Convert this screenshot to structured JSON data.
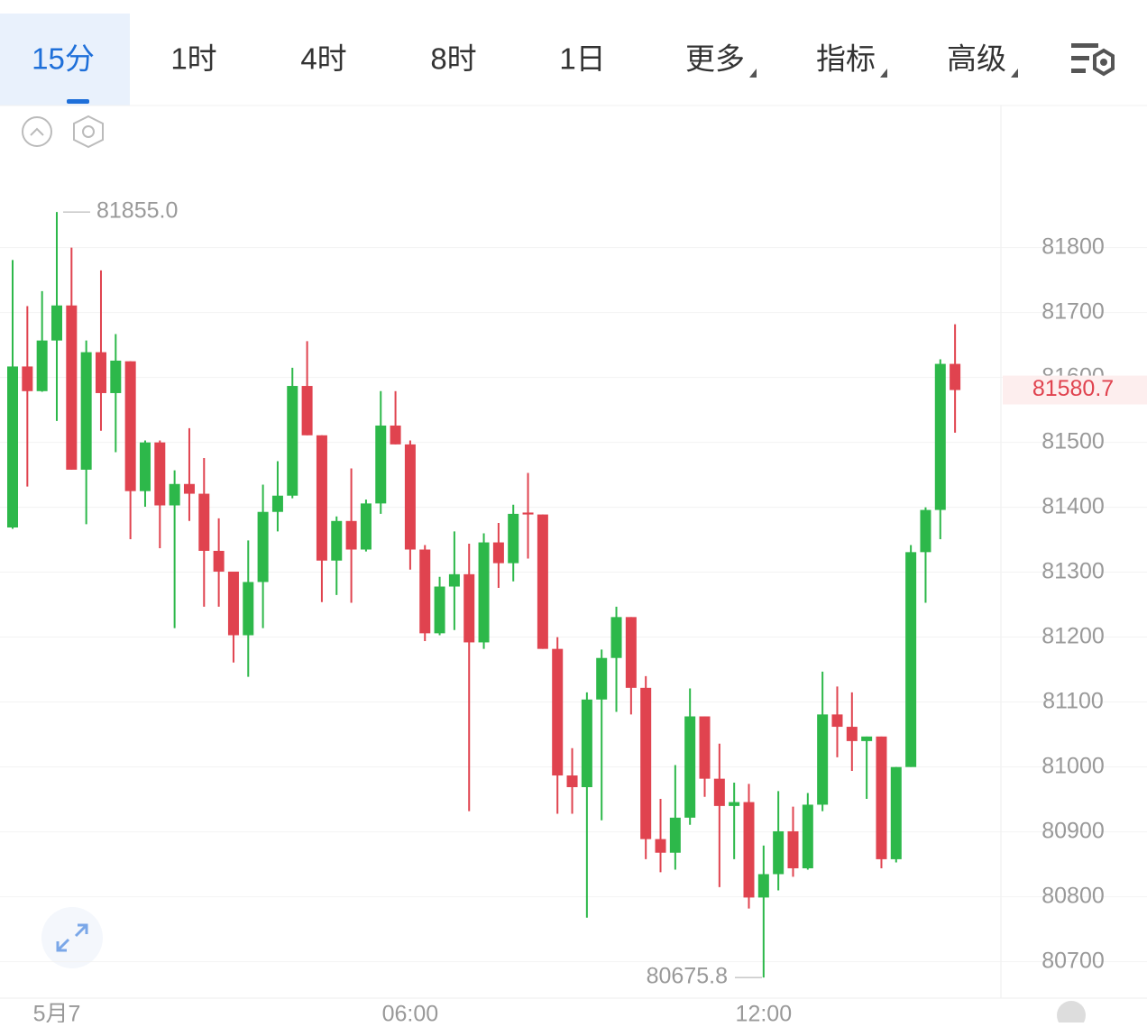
{
  "toolbar": {
    "tabs": [
      "15分",
      "1时",
      "4时",
      "8时",
      "1日",
      "更多",
      "指标",
      "高级"
    ]
  },
  "chart_data": {
    "type": "candlestick",
    "categories": [
      null,
      null,
      null,
      "5月7",
      null,
      null,
      null,
      null,
      null,
      null,
      null,
      null,
      null,
      null,
      null,
      null,
      null,
      null,
      null,
      null,
      null,
      null,
      null,
      null,
      null,
      null,
      null,
      "06:00",
      null,
      null,
      null,
      null,
      null,
      null,
      null,
      null,
      null,
      null,
      null,
      null,
      null,
      null,
      null,
      null,
      null,
      null,
      null,
      null,
      null,
      null,
      null,
      "12:00",
      null,
      null,
      null,
      null,
      null,
      null,
      null,
      null,
      null,
      null,
      null,
      null,
      null
    ],
    "open": [
      81369,
      81617,
      81579,
      81657,
      81711,
      81458,
      81639,
      81576,
      81625,
      81425,
      81500,
      81403,
      81436,
      81421,
      81333,
      81301,
      81203,
      81285,
      81393,
      81418,
      81587,
      81511,
      81318,
      81379,
      81335,
      81406,
      81526,
      81497,
      81335,
      81206,
      81278,
      81297,
      81192,
      81346,
      81314,
      81392,
      81389,
      81182,
      80987,
      80969,
      81104,
      81168,
      81231,
      81122,
      80889,
      80868,
      80922,
      81078,
      80982,
      80940,
      80946,
      80799,
      80835,
      80901,
      80844,
      80942,
      81081,
      81062,
      81040,
      81047,
      80858,
      81000,
      81331,
      81396,
      81621
    ],
    "high": [
      81781,
      81710,
      81733,
      81855,
      81800,
      81657,
      81765,
      81667,
      81625,
      81503,
      81503,
      81457,
      81522,
      81476,
      81383,
      81301,
      81349,
      81435,
      81471,
      81615,
      81656,
      81511,
      81386,
      81460,
      81412,
      81579,
      81579,
      81503,
      81342,
      81293,
      81363,
      81344,
      81360,
      81376,
      81404,
      81453,
      81389,
      81200,
      81029,
      81115,
      81181,
      81247,
      81231,
      81140,
      80951,
      81003,
      81121,
      81078,
      81036,
      80976,
      80974,
      80879,
      80963,
      80939,
      80960,
      81147,
      81124,
      81115,
      81047,
      81047,
      81000,
      81342,
      81400,
      81628,
      81682
    ],
    "low": [
      81367,
      81432,
      81578,
      81533,
      81458,
      81374,
      81518,
      81485,
      81351,
      81401,
      81337,
      81214,
      81379,
      81247,
      81247,
      81161,
      81139,
      81214,
      81363,
      81414,
      81511,
      81254,
      81265,
      81253,
      81332,
      81390,
      81497,
      81304,
      81194,
      81203,
      81211,
      80932,
      81182,
      81276,
      81286,
      81321,
      81182,
      80928,
      80928,
      80768,
      80918,
      81085,
      81081,
      80858,
      80838,
      80842,
      80911,
      80954,
      80815,
      80858,
      80782,
      80675.8,
      80810,
      80831,
      80842,
      80932,
      81015,
      80994,
      80951,
      80844,
      80853,
      81000,
      81253,
      81351,
      81515
    ],
    "close": [
      81617,
      81579,
      81657,
      81711,
      81458,
      81639,
      81576,
      81626,
      81425,
      81500,
      81403,
      81436,
      81421,
      81333,
      81301,
      81203,
      81285,
      81393,
      81418,
      81587,
      81511,
      81318,
      81379,
      81335,
      81406,
      81526,
      81497,
      81335,
      81206,
      81278,
      81297,
      81192,
      81346,
      81314,
      81390,
      81389,
      81182,
      80987,
      80969,
      81104,
      81168,
      81231,
      81122,
      80889,
      80868,
      80922,
      81078,
      80982,
      80940,
      80946,
      80799,
      80835,
      80901,
      80844,
      80942,
      81081,
      81062,
      81040,
      81047,
      80858,
      81000,
      81331,
      81396,
      81621,
      81580.7
    ],
    "up_color": "#2db84a",
    "down_color": "#e0434f",
    "ylim": [
      80644,
      82019
    ],
    "yticks": [
      80700,
      80800,
      80900,
      81000,
      81100,
      81200,
      81300,
      81400,
      81500,
      81600,
      81700,
      81800
    ],
    "grid": true,
    "high_label": {
      "value": 81855,
      "label": "81855.0"
    },
    "low_label": 80675.8,
    "last_price": 81580.7
  }
}
